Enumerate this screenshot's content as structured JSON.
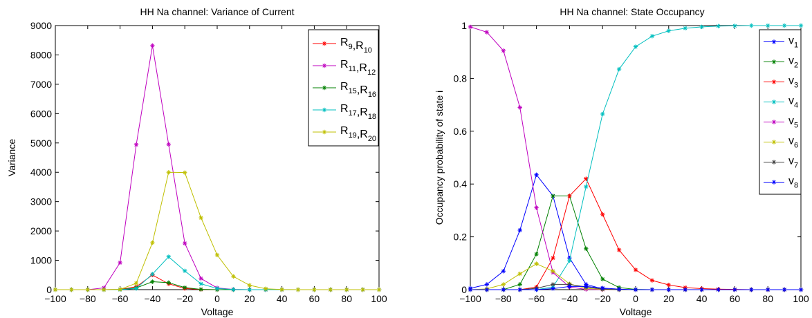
{
  "chart_data": [
    {
      "type": "line",
      "title": "HH Na channel: Variance of Current",
      "xlabel": "Voltage",
      "ylabel": "Variance",
      "xlim": [
        -100,
        100
      ],
      "ylim": [
        0,
        9000
      ],
      "xticks": [
        -100,
        -80,
        -60,
        -40,
        -20,
        0,
        20,
        40,
        60,
        80,
        100
      ],
      "yticks": [
        0,
        1000,
        2000,
        3000,
        4000,
        5000,
        6000,
        7000,
        8000,
        9000
      ],
      "xtick_labels": [
        "−100",
        "−80",
        "−60",
        "−40",
        "−20",
        "0",
        "20",
        "40",
        "60",
        "80",
        "100"
      ],
      "ytick_labels": [
        "0",
        "1000",
        "2000",
        "3000",
        "4000",
        "5000",
        "6000",
        "7000",
        "8000",
        "9000"
      ],
      "legend_position": "top-right",
      "marker": "asterisk",
      "x": [
        -100,
        -90,
        -80,
        -70,
        -60,
        -50,
        -40,
        -30,
        -20,
        -10,
        0,
        10,
        20,
        30,
        40,
        50,
        60,
        70,
        80,
        90,
        100
      ],
      "series": [
        {
          "name": "R9,R10",
          "label_main": [
            "R",
            ",R"
          ],
          "label_sub": [
            "9",
            "10"
          ],
          "color": "#ff0000",
          "values": [
            0,
            0,
            0,
            0,
            5,
            100,
            500,
            200,
            40,
            5,
            0,
            0,
            0,
            0,
            0,
            0,
            0,
            0,
            0,
            0,
            0
          ]
        },
        {
          "name": "R11,R12",
          "label_main": [
            "R",
            ",R"
          ],
          "label_sub": [
            "11",
            "12"
          ],
          "color": "#bf00bf",
          "values": [
            0,
            0,
            0,
            60,
            920,
            4940,
            8320,
            4950,
            1580,
            380,
            60,
            10,
            0,
            0,
            0,
            0,
            0,
            0,
            0,
            0,
            0
          ]
        },
        {
          "name": "R15,R16",
          "label_main": [
            "R",
            ",R"
          ],
          "label_sub": [
            "15",
            "16"
          ],
          "color": "#008000",
          "values": [
            0,
            0,
            0,
            0,
            5,
            60,
            270,
            240,
            70,
            10,
            0,
            0,
            0,
            0,
            0,
            0,
            0,
            0,
            0,
            0,
            0
          ]
        },
        {
          "name": "R17,R18",
          "label_main": [
            "R",
            ",R"
          ],
          "label_sub": [
            "17",
            "18"
          ],
          "color": "#00bfbf",
          "values": [
            0,
            0,
            0,
            0,
            0,
            40,
            530,
            1120,
            640,
            200,
            40,
            5,
            0,
            0,
            0,
            0,
            0,
            0,
            0,
            0,
            0
          ]
        },
        {
          "name": "R19,R20",
          "label_main": [
            "R",
            ",R"
          ],
          "label_sub": [
            "19",
            "20"
          ],
          "color": "#bfbf00",
          "values": [
            0,
            0,
            0,
            0,
            10,
            220,
            1600,
            4000,
            3990,
            2450,
            1180,
            450,
            150,
            30,
            5,
            0,
            0,
            0,
            0,
            0,
            0
          ]
        }
      ]
    },
    {
      "type": "line",
      "title": "HH Na channel: State Occupancy",
      "xlabel": "Voltage",
      "ylabel": "Occupancy probability of state i",
      "xlim": [
        -100,
        100
      ],
      "ylim": [
        0,
        1
      ],
      "xticks": [
        -100,
        -80,
        -60,
        -40,
        -20,
        0,
        20,
        40,
        60,
        80,
        100
      ],
      "yticks": [
        0,
        0.2,
        0.4,
        0.6,
        0.8,
        1
      ],
      "xtick_labels": [
        "−100",
        "−80",
        "−60",
        "−40",
        "−20",
        "0",
        "20",
        "40",
        "60",
        "80",
        "100"
      ],
      "ytick_labels": [
        "0",
        "0.2",
        "0.4",
        "0.6",
        "0.8",
        "1"
      ],
      "legend_position": "top-right",
      "marker": "asterisk",
      "x": [
        -100,
        -90,
        -80,
        -70,
        -60,
        -50,
        -40,
        -30,
        -20,
        -10,
        0,
        10,
        20,
        30,
        40,
        50,
        60,
        70,
        80,
        90,
        100
      ],
      "series": [
        {
          "name": "v1",
          "label_main": [
            "v"
          ],
          "label_sub": [
            "1"
          ],
          "color": "#0000ff",
          "values": [
            0.005,
            0.02,
            0.07,
            0.225,
            0.435,
            0.355,
            0.12,
            0.02,
            0.003,
            0,
            0,
            0,
            0,
            0,
            0,
            0,
            0,
            0,
            0,
            0,
            0
          ]
        },
        {
          "name": "v2",
          "label_main": [
            "v"
          ],
          "label_sub": [
            "2"
          ],
          "color": "#008000",
          "values": [
            0,
            0,
            0,
            0.02,
            0.135,
            0.355,
            0.355,
            0.155,
            0.04,
            0.008,
            0.001,
            0,
            0,
            0,
            0,
            0,
            0,
            0,
            0,
            0,
            0
          ]
        },
        {
          "name": "v3",
          "label_main": [
            "v"
          ],
          "label_sub": [
            "3"
          ],
          "color": "#ff0000",
          "values": [
            0,
            0,
            0,
            0,
            0.01,
            0.12,
            0.355,
            0.42,
            0.285,
            0.15,
            0.075,
            0.035,
            0.018,
            0.008,
            0.004,
            0.002,
            0.001,
            0,
            0,
            0,
            0
          ]
        },
        {
          "name": "v4",
          "label_main": [
            "v"
          ],
          "label_sub": [
            "4"
          ],
          "color": "#00bfbf",
          "values": [
            0,
            0,
            0,
            0,
            0,
            0.01,
            0.11,
            0.39,
            0.665,
            0.835,
            0.92,
            0.96,
            0.98,
            0.99,
            0.995,
            0.998,
            0.999,
            1,
            1,
            1,
            1
          ]
        },
        {
          "name": "v5",
          "label_main": [
            "v"
          ],
          "label_sub": [
            "5"
          ],
          "color": "#bf00bf",
          "values": [
            0.995,
            0.975,
            0.905,
            0.69,
            0.31,
            0.065,
            0.01,
            0.001,
            0,
            0,
            0,
            0,
            0,
            0,
            0,
            0,
            0,
            0,
            0,
            0,
            0
          ]
        },
        {
          "name": "v6",
          "label_main": [
            "v"
          ],
          "label_sub": [
            "6"
          ],
          "color": "#bfbf00",
          "values": [
            0,
            0.003,
            0.02,
            0.06,
            0.098,
            0.07,
            0.022,
            0.005,
            0.001,
            0,
            0,
            0,
            0,
            0,
            0,
            0,
            0,
            0,
            0,
            0,
            0
          ]
        },
        {
          "name": "v7",
          "label_main": [
            "v"
          ],
          "label_sub": [
            "7"
          ],
          "color": "#404040",
          "values": [
            0,
            0,
            0,
            0,
            0.005,
            0.02,
            0.02,
            0.01,
            0.002,
            0,
            0,
            0,
            0,
            0,
            0,
            0,
            0,
            0,
            0,
            0,
            0
          ]
        },
        {
          "name": "v8",
          "label_main": [
            "v"
          ],
          "label_sub": [
            "8"
          ],
          "color": "#0000ff",
          "values": [
            0,
            0,
            0,
            0,
            0,
            0.004,
            0.012,
            0.012,
            0.006,
            0.002,
            0,
            0,
            0,
            0,
            0,
            0,
            0,
            0,
            0,
            0,
            0
          ]
        }
      ]
    }
  ]
}
